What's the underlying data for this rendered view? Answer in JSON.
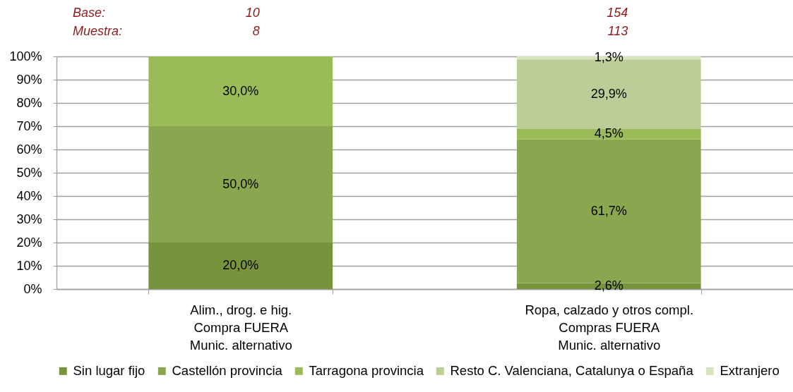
{
  "chart_data": {
    "type": "bar",
    "stacked": true,
    "categories": [
      "Alim., drog. e hig.\nCompra FUERA\nMunic. alternativo",
      "Ropa, calzado y otros compl.\nCompras FUERA\nMunic. alternativo"
    ],
    "series": [
      {
        "name": "Sin lugar fijo",
        "color": "#77933c",
        "values": [
          20.0,
          2.6
        ],
        "value_labels": [
          "20,0%",
          "2,6%"
        ]
      },
      {
        "name": "Castellón provincia",
        "color": "#8aa64f",
        "values": [
          50.0,
          61.7
        ],
        "value_labels": [
          "50,0%",
          "61,7%"
        ]
      },
      {
        "name": "Tarragona provincia",
        "color": "#9bbb59",
        "values": [
          30.0,
          4.5
        ],
        "value_labels": [
          "30,0%",
          "4,5%"
        ]
      },
      {
        "name": "Resto C. Valenciana, Catalunya o España",
        "color": "#bbce97",
        "values": [
          null,
          29.9
        ],
        "value_labels": [
          null,
          "29,9%"
        ]
      },
      {
        "name": "Extranjero",
        "color": "#d7e4bd",
        "values": [
          null,
          1.3
        ],
        "value_labels": [
          null,
          "1,3%"
        ]
      }
    ],
    "ylim": [
      0,
      100
    ],
    "yticks": [
      {
        "value": 0,
        "label": "0%"
      },
      {
        "value": 10,
        "label": "10%"
      },
      {
        "value": 20,
        "label": "20%"
      },
      {
        "value": 30,
        "label": "30%"
      },
      {
        "value": 40,
        "label": "40%"
      },
      {
        "value": 50,
        "label": "50%"
      },
      {
        "value": 60,
        "label": "60%"
      },
      {
        "value": 70,
        "label": "70%"
      },
      {
        "value": 80,
        "label": "80%"
      },
      {
        "value": 90,
        "label": "90%"
      },
      {
        "value": 100,
        "label": "100%"
      }
    ],
    "grid": "y",
    "legend": "bottom",
    "annotations": [
      "Base:",
      "10",
      "154",
      "Muestra:",
      "8",
      "113"
    ]
  }
}
